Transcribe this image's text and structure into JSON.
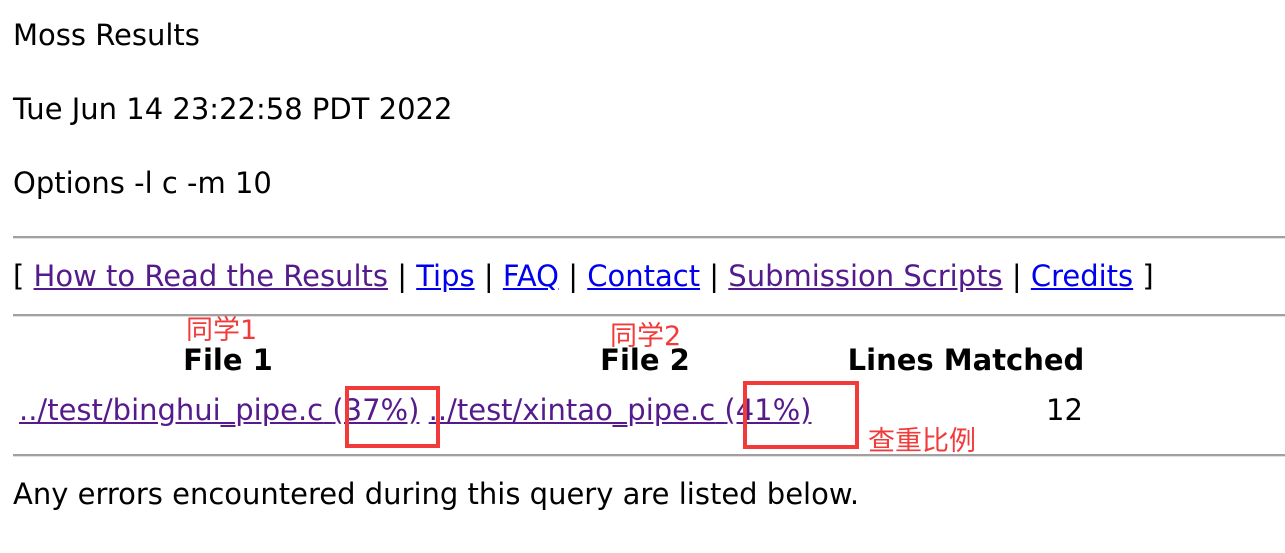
{
  "header": {
    "title": "Moss Results",
    "date": "Tue Jun 14 23:22:58 PDT 2022",
    "options": "Options -l c -m 10"
  },
  "nav": {
    "open_bracket": "[",
    "close_bracket": "]",
    "separator": "|",
    "links": [
      {
        "label": "How to Read the Results",
        "visited": true
      },
      {
        "label": "Tips",
        "visited": false
      },
      {
        "label": "FAQ",
        "visited": false
      },
      {
        "label": "Contact",
        "visited": false
      },
      {
        "label": "Submission Scripts",
        "visited": true
      },
      {
        "label": "Credits",
        "visited": false
      }
    ]
  },
  "table": {
    "headers": [
      "File 1",
      "File 2",
      "Lines Matched"
    ],
    "rows": [
      {
        "file1": "../test/binghui_pipe.c",
        "file1_pct": "(37%)",
        "file2": "../test/xintao_pipe.c",
        "file2_pct": "(41%)",
        "lines": "12"
      }
    ]
  },
  "annotations": {
    "student1": "同学1",
    "student2": "同学2",
    "similarity": "查重比例",
    "color": "#f23a3a"
  },
  "footer": {
    "errors_text": "Any errors encountered during this query are listed below."
  }
}
